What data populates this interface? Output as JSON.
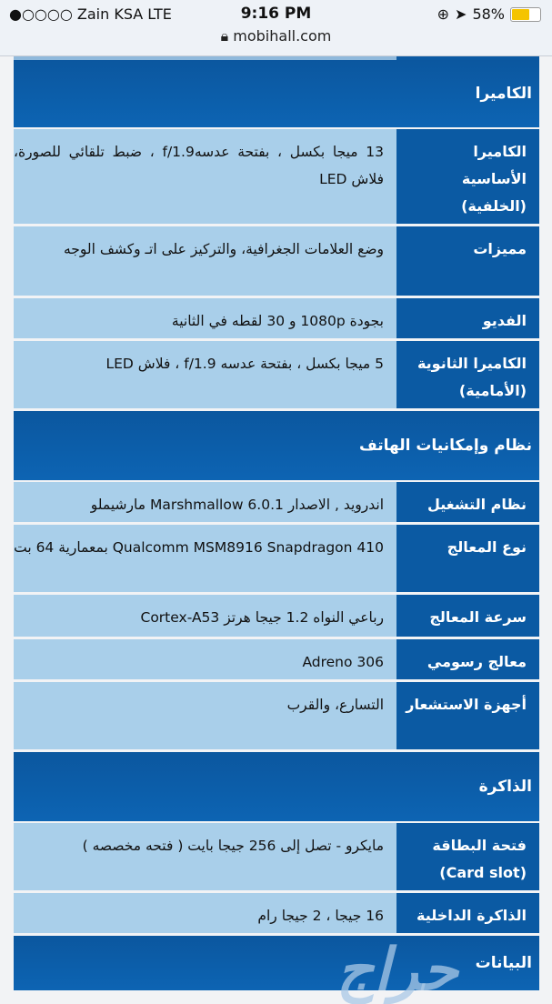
{
  "status_bar": {
    "carrier": "●○○○○ Zain KSA   LTE",
    "time": "9:16 PM",
    "battery": "58%",
    "battery_level": 0.58,
    "url": "mobihall.com"
  },
  "sections": [
    {
      "title": "الكاميرا",
      "rows": [
        {
          "label": "الكاميرا الأساسية (الخلفية)",
          "value": "13 ميجا بكسل ، بفتحة عدسهf/1.9 ، ضبط تلقائي للصورة، فلاش LED"
        },
        {
          "label": "مميزات",
          "value": "وضع العلامات الجغرافية، والتركيز على اتـ وكشف الوجه"
        },
        {
          "label": "الفديو",
          "value": "بجودة 1080p و 30 لقطه في الثانية"
        },
        {
          "label": "الكاميرا الثانوية (الأمامية)",
          "value": "5 ميجا بكسل ، بفتحة عدسه f/1.9 ، فلاش LED"
        }
      ]
    },
    {
      "title": "نظام وإمكانيات الهاتف",
      "rows": [
        {
          "label": "نظام التشغيل",
          "value": "اندرويد , الاصدار Marshmallow 6.0.1 مارشيملو"
        },
        {
          "label": "نوع المعالج",
          "value": "Qualcomm MSM8916 Snapdragon 410 بمعمارية 64 بت"
        },
        {
          "label": "سرعة المعالج",
          "value": "رباعي النواه 1.2 جيجا هرتز Cortex-A53"
        },
        {
          "label": "معالج رسومي",
          "value": "Adreno 306"
        },
        {
          "label": "أجهزة الاستشعار",
          "value": "التسارع، والقرب"
        }
      ]
    },
    {
      "title": "الذاكرة",
      "rows": [
        {
          "label": "فتحة البطاقة (Card slot)",
          "value": "مايكرو - تصل إلى 256 جيجا بايت ( فتحه مخصصه )"
        },
        {
          "label": "الذاكرة الداخلية",
          "value": "16 جيجا ، 2 جيجا رام"
        }
      ]
    },
    {
      "title": "البيانات",
      "rows": []
    }
  ],
  "watermark": "حراج"
}
